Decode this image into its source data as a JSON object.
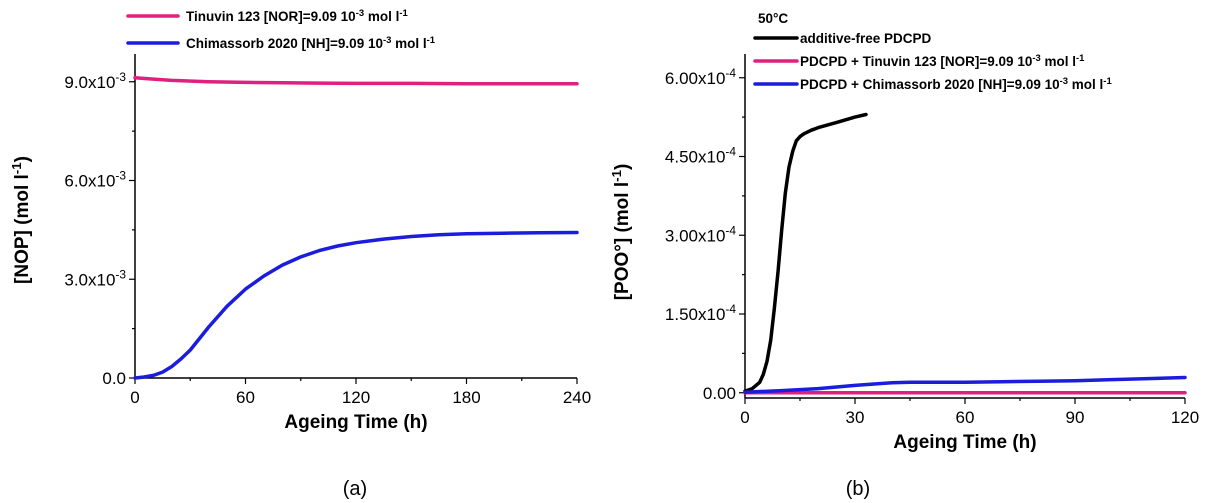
{
  "chart_data": [
    {
      "type": "line",
      "caption": "(a)",
      "xlabel": "Ageing Time (h)",
      "ylabel_prefix": "[NOP] (mol l",
      "ylabel_sup": "-1",
      "ylabel_suffix": ")",
      "xlim": [
        0,
        240
      ],
      "ylim": [
        0,
        0.0096
      ],
      "xticks": [
        0,
        60,
        120,
        180,
        240
      ],
      "xtick_labels": [
        "0",
        "60",
        "120",
        "180",
        "240"
      ],
      "yticks": [
        0,
        0.003,
        0.006,
        0.009
      ],
      "ytick_labels": [
        {
          "base": "0.0",
          "sup": ""
        },
        {
          "base": "3.0x10",
          "sup": "-3"
        },
        {
          "base": "6.0x10",
          "sup": "-3"
        },
        {
          "base": "9.0x10",
          "sup": "-3"
        }
      ],
      "legend_position": "top-left",
      "series": [
        {
          "name_prefix": "Tinuvin 123 [NOR]=9.09 10",
          "name_sup": "-3",
          "name_mid": " mol l",
          "name_sup2": "-1",
          "color": "#e0207e",
          "x": [
            0,
            10,
            20,
            40,
            60,
            80,
            100,
            120,
            150,
            180,
            210,
            240
          ],
          "y": [
            0.00912,
            0.00908,
            0.00904,
            0.009,
            0.00898,
            0.00897,
            0.00896,
            0.00895,
            0.00895,
            0.00894,
            0.00894,
            0.00894
          ]
        },
        {
          "name_prefix": "Chimassorb 2020 [NH]=9.09 10",
          "name_sup": "-3",
          "name_mid": " mol l",
          "name_sup2": "-1",
          "color": "#1c1cdc",
          "x": [
            0,
            5,
            10,
            15,
            20,
            25,
            30,
            40,
            50,
            60,
            70,
            80,
            90,
            100,
            110,
            120,
            135,
            150,
            165,
            180,
            200,
            220,
            240
          ],
          "y": [
            0,
            3e-05,
            8e-05,
            0.00018,
            0.00035,
            0.00058,
            0.00085,
            0.00155,
            0.00218,
            0.0027,
            0.0031,
            0.00343,
            0.00368,
            0.00387,
            0.00401,
            0.00411,
            0.00422,
            0.0043,
            0.00435,
            0.00438,
            0.0044,
            0.00441,
            0.00442
          ]
        }
      ]
    },
    {
      "type": "line",
      "caption": "(b)",
      "annotation": "50°C",
      "xlabel": "Ageing Time (h)",
      "ylabel_prefix": "[POO°] (mol l",
      "ylabel_sup": "-1",
      "ylabel_suffix": ")",
      "xlim": [
        0,
        120
      ],
      "ylim": [
        -1e-05,
        0.00063
      ],
      "xticks": [
        0,
        30,
        60,
        90,
        120
      ],
      "xtick_labels": [
        "0",
        "30",
        "60",
        "90",
        "120"
      ],
      "yticks": [
        0,
        0.00015,
        0.0003,
        0.00045,
        0.0006
      ],
      "ytick_labels": [
        {
          "base": "0.00",
          "sup": ""
        },
        {
          "base": "1.50x10",
          "sup": "-4"
        },
        {
          "base": "3.00x10",
          "sup": "-4"
        },
        {
          "base": "4.50x10",
          "sup": "-4"
        },
        {
          "base": "6.00x10",
          "sup": "-4"
        }
      ],
      "legend_position": "top-right",
      "series": [
        {
          "name_prefix": "additive-free PDCPD",
          "name_sup": "",
          "name_mid": "",
          "name_sup2": "",
          "color": "#000000",
          "x": [
            0,
            2,
            4,
            5,
            6,
            7,
            8,
            9,
            10,
            11,
            12,
            13,
            14,
            15,
            16,
            18,
            20,
            25,
            30,
            33
          ],
          "y": [
            3e-06,
            8e-06,
            2e-05,
            3.5e-05,
            6e-05,
            0.0001,
            0.00016,
            0.00023,
            0.00031,
            0.00038,
            0.00043,
            0.00046,
            0.00048,
            0.000488,
            0.000493,
            0.0005,
            0.000505,
            0.000515,
            0.000525,
            0.00053
          ]
        },
        {
          "name_prefix": "PDCPD + Tinuvin 123 [NOR]=9.09 10",
          "name_sup": "-3",
          "name_mid": " mol l",
          "name_sup2": "-1",
          "color": "#e0207e",
          "x": [
            0,
            30,
            60,
            90,
            120
          ],
          "y": [
            0,
            0,
            0,
            0,
            0
          ]
        },
        {
          "name_prefix": "PDCPD + Chimassorb 2020 [NH]=9.09 10",
          "name_sup": "-3",
          "name_mid": " mol l",
          "name_sup2": "-1",
          "color": "#1c1cdc",
          "x": [
            0,
            10,
            20,
            30,
            40,
            45,
            50,
            60,
            70,
            80,
            90,
            100,
            110,
            120
          ],
          "y": [
            1e-06,
            4e-06,
            8e-06,
            1.4e-05,
            1.9e-05,
            2e-05,
            2e-05,
            2e-05,
            2.1e-05,
            2.2e-05,
            2.3e-05,
            2.5e-05,
            2.7e-05,
            2.9e-05
          ]
        }
      ]
    }
  ]
}
